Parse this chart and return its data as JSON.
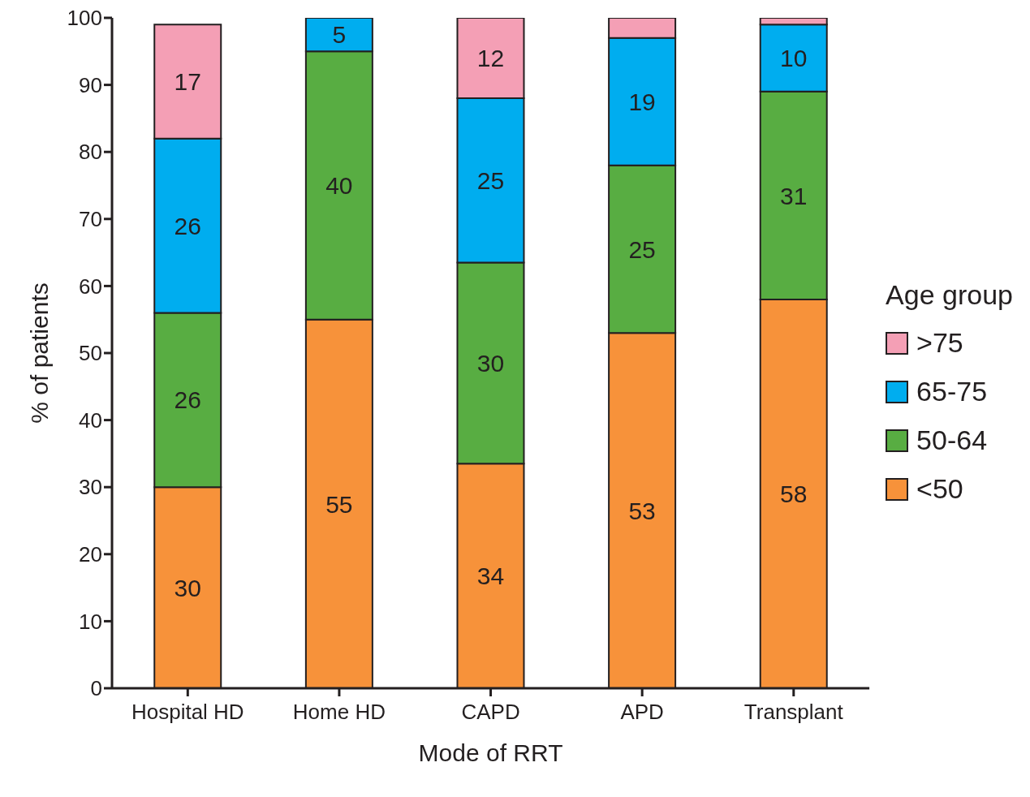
{
  "chart_data": {
    "type": "bar",
    "stacked": true,
    "xlabel": "Mode of RRT",
    "ylabel": "% of patients",
    "legend_title": "Age group",
    "legend": "right",
    "categories": [
      "Hospital HD",
      "Home HD",
      "CAPD",
      "APD",
      "Transplant"
    ],
    "ylim": [
      0,
      100
    ],
    "yticks": [
      0,
      10,
      20,
      30,
      40,
      50,
      60,
      70,
      80,
      90,
      100
    ],
    "series": [
      {
        "name": "<50",
        "color": "#f7923a",
        "values": [
          30,
          55,
          33.5,
          53,
          58
        ],
        "value_labels": [
          "30",
          "55",
          "34",
          "53",
          "58"
        ]
      },
      {
        "name": "50-64",
        "color": "#58ad42",
        "values": [
          26,
          40,
          30,
          25,
          31
        ],
        "value_labels": [
          "26",
          "40",
          "30",
          "25",
          "31"
        ]
      },
      {
        "name": "65-75",
        "color": "#00adef",
        "values": [
          26,
          5,
          24.5,
          19,
          10
        ],
        "value_labels": [
          "26",
          "5",
          "25",
          "19",
          "10"
        ]
      },
      {
        "name": ">75",
        "color": "#f49fb5",
        "values": [
          17,
          0,
          12,
          3,
          1
        ],
        "value_labels": [
          "17",
          null,
          "12",
          null,
          null
        ]
      }
    ]
  }
}
